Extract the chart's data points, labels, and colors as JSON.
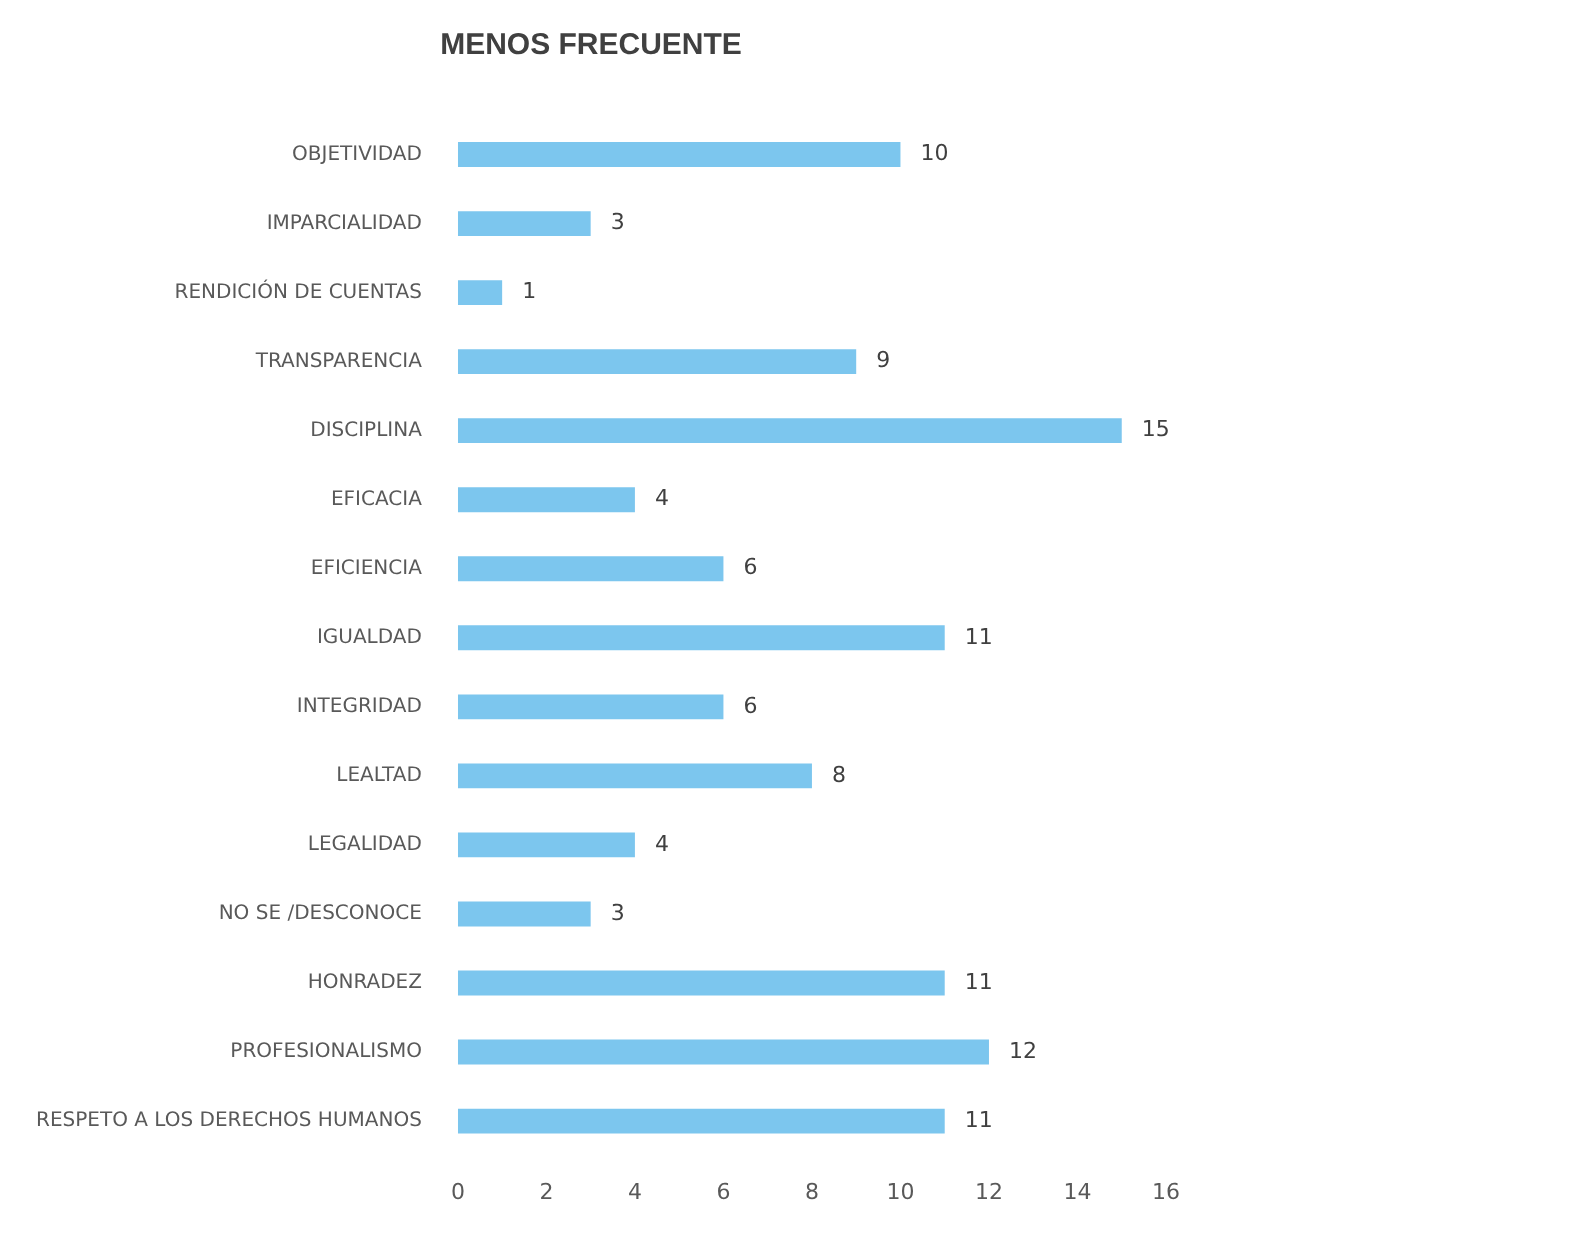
{
  "chart_data": {
    "type": "bar",
    "orientation": "horizontal",
    "title": "MENOS FRECUENTE",
    "categories": [
      "OBJETIVIDAD",
      "IMPARCIALIDAD",
      "RENDICIÓN DE CUENTAS",
      "TRANSPARENCIA",
      "DISCIPLINA",
      "EFICACIA",
      "EFICIENCIA",
      "IGUALDAD",
      "INTEGRIDAD",
      "LEALTAD",
      "LEGALIDAD",
      "NO SE /DESCONOCE",
      "HONRADEZ",
      "PROFESIONALISMO",
      "RESPETO A LOS DERECHOS HUMANOS"
    ],
    "values": [
      10,
      3,
      1,
      9,
      15,
      4,
      6,
      11,
      6,
      8,
      4,
      3,
      11,
      12,
      11
    ],
    "color": "#7cc6ee",
    "xlim": [
      0,
      16
    ],
    "xticks": [
      0,
      2,
      4,
      6,
      8,
      10,
      12,
      14,
      16
    ],
    "grid": false,
    "legend": false,
    "data_labels": true
  }
}
